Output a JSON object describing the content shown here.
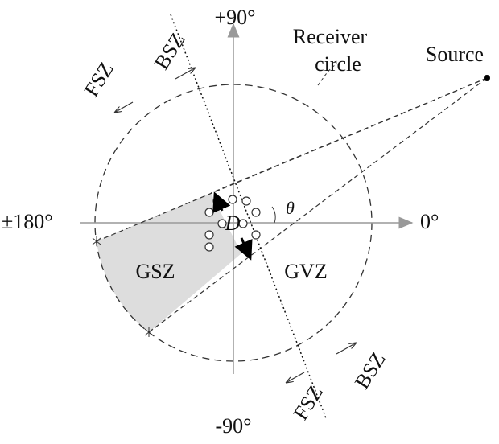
{
  "axes": {
    "top": "+90°",
    "bottom": "-90°",
    "left": "±180°",
    "right": "0°"
  },
  "receiver": {
    "line1": "Receiver",
    "line2": "circle"
  },
  "source": "Source",
  "zones": {
    "upper_fsz": "FSZ",
    "upper_bsz": "BSZ",
    "lower_fsz": "FSZ",
    "lower_bsz": "BSZ",
    "gsz": "GSZ",
    "gvz": "GVZ"
  },
  "symbols": {
    "d": "D",
    "theta": "θ"
  }
}
